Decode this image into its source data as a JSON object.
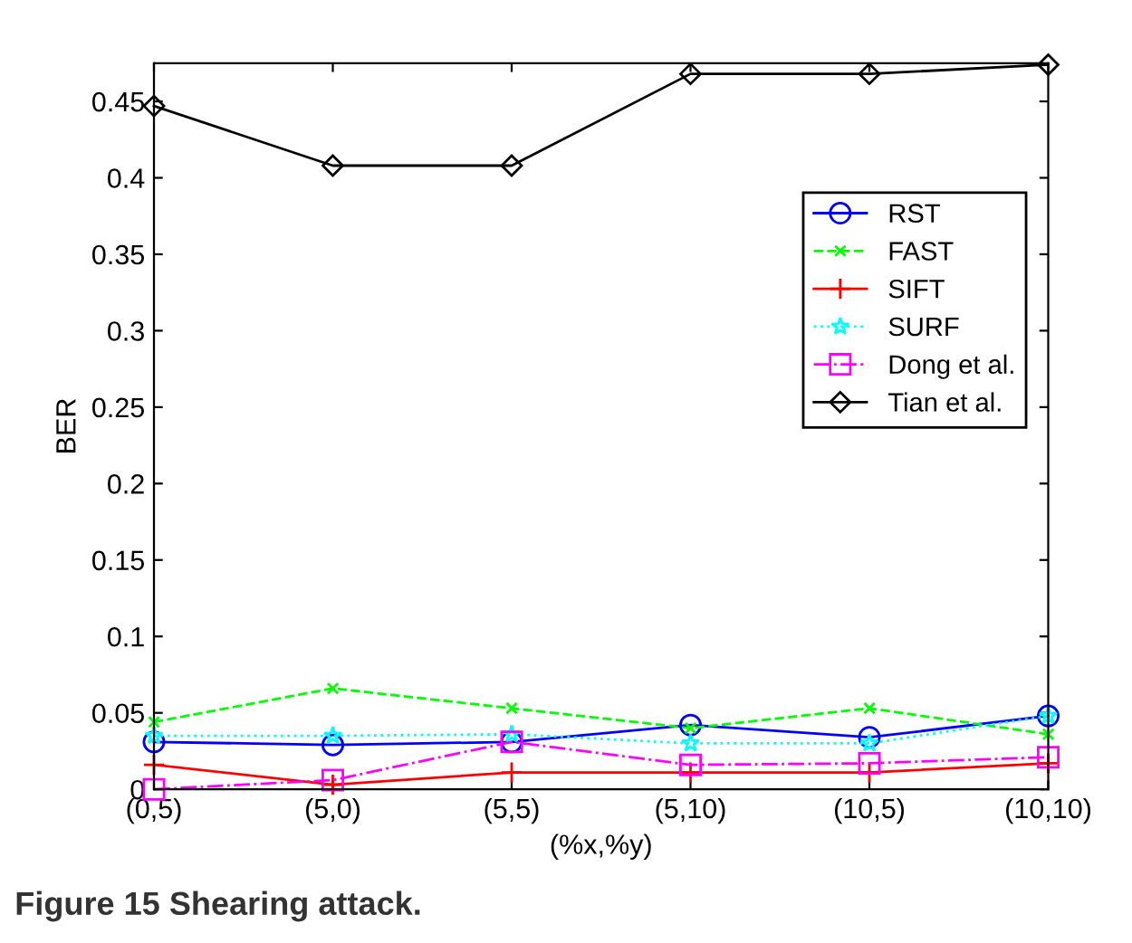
{
  "chart_data": {
    "type": "line",
    "categories": [
      "(0,5)",
      "(5,0)",
      "(5,5)",
      "(5,10)",
      "(10,5)",
      "(10,10)"
    ],
    "xlabel": "(%x,%y)",
    "ylabel": "BER",
    "ylim": [
      0,
      0.475
    ],
    "yticks": [
      0,
      {
        "value": 0.05,
        "label": "0.05"
      },
      {
        "value": 0.1,
        "label": "0.1"
      },
      {
        "value": 0.15,
        "label": "0.15"
      },
      {
        "value": 0.2,
        "label": "0.2"
      },
      {
        "value": 0.25,
        "label": "0.25"
      },
      {
        "value": 0.3,
        "label": "0.3"
      },
      {
        "value": 0.35,
        "label": "0.35"
      },
      {
        "value": 0.4,
        "label": "0.4"
      },
      {
        "value": 0.45,
        "label": "0.45"
      }
    ],
    "grid": false,
    "legend": "right",
    "annotations": [
      "Figure 15 Shearing attack."
    ],
    "series": [
      {
        "name": "RST",
        "color": "#0000ff",
        "marker": "circle",
        "line_style": "solid",
        "values": [
          0.031,
          0.029,
          0.031,
          0.042,
          0.034,
          0.048
        ]
      },
      {
        "name": "FAST",
        "color": "#00ff00",
        "marker": "cross",
        "line_style": "dashed",
        "values": [
          0.044,
          0.066,
          0.053,
          0.04,
          0.053,
          0.036
        ]
      },
      {
        "name": "SIFT",
        "color": "#ff0000",
        "marker": "plus",
        "line_style": "solid",
        "values": [
          0.016,
          0.003,
          0.011,
          0.011,
          0.011,
          0.017
        ]
      },
      {
        "name": "SURF",
        "color": "#00ffff",
        "marker": "star",
        "line_style": "dotted",
        "values": [
          0.035,
          0.035,
          0.036,
          0.03,
          0.03,
          0.048
        ]
      },
      {
        "name": "Dong et al.",
        "color": "#ff00ff",
        "marker": "square",
        "line_style": "dashdot",
        "values": [
          0.0,
          0.006,
          0.031,
          0.016,
          0.017,
          0.021
        ]
      },
      {
        "name": "Tian et al.",
        "color": "#000000",
        "marker": "diamond",
        "line_style": "solid",
        "values": [
          0.447,
          0.408,
          0.408,
          0.468,
          0.468,
          0.474
        ]
      }
    ]
  }
}
